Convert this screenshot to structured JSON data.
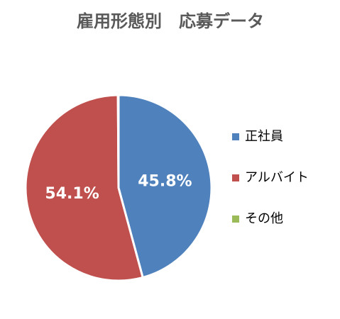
{
  "chart_data": {
    "type": "pie",
    "title": "雇用形態別　応募データ",
    "categories": [
      "正社員",
      "アルバイト",
      "その他"
    ],
    "values": [
      45.8,
      54.1,
      0.1
    ],
    "value_labels": [
      "45.8%",
      "54.1%",
      null
    ],
    "colors": [
      "#4f81bd",
      "#c0504d",
      "#9bbb59"
    ],
    "legend": "right"
  }
}
